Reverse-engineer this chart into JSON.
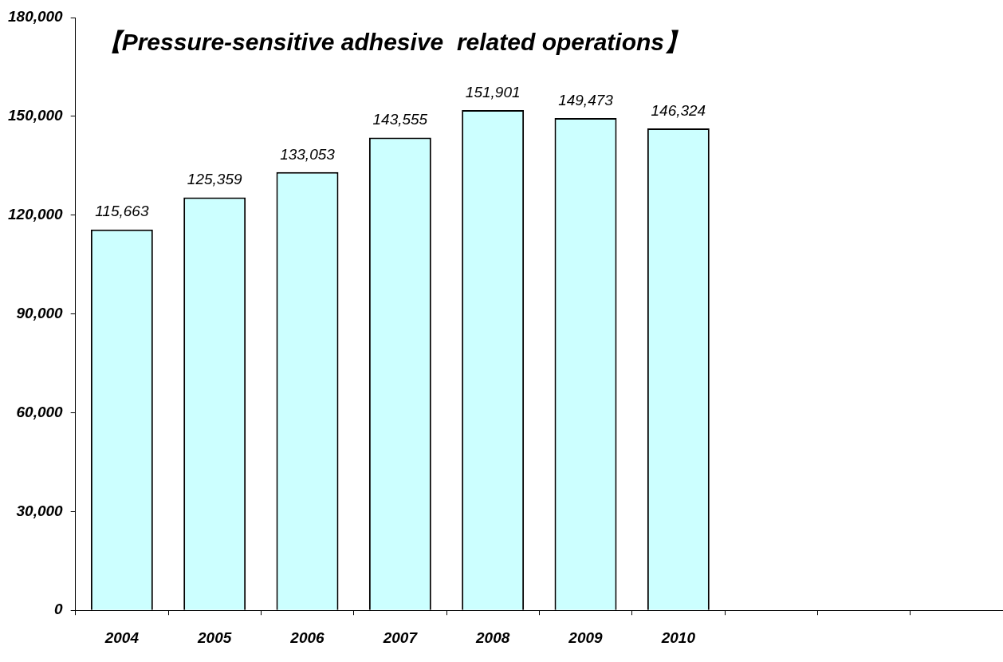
{
  "chart_data": {
    "type": "bar",
    "title": "【Pressure-sensitive adhesive  related operations】",
    "categories": [
      "2004",
      "2005",
      "2006",
      "2007",
      "2008",
      "2009",
      "2010",
      null,
      null,
      null
    ],
    "values": [
      115663,
      125359,
      133053,
      143555,
      151901,
      149473,
      146324,
      null,
      null,
      null
    ],
    "value_labels": [
      "115,663",
      "125,359",
      "133,053",
      "143,555",
      "151,901",
      "149,473",
      "146,324",
      null,
      null,
      null
    ],
    "color": "#ccffff",
    "ylim": [
      0,
      180000
    ],
    "yticks": [
      0,
      {
        "value": 30000,
        "label": "30,000"
      },
      {
        "value": 60000,
        "label": "60,000"
      },
      {
        "value": 90000,
        "label": "90,000"
      },
      {
        "value": 120000,
        "label": "120,000"
      },
      {
        "value": 150000,
        "label": "150,000"
      },
      {
        "value": 180000,
        "label": "180,000"
      }
    ],
    "grid": false,
    "legend": false
  }
}
